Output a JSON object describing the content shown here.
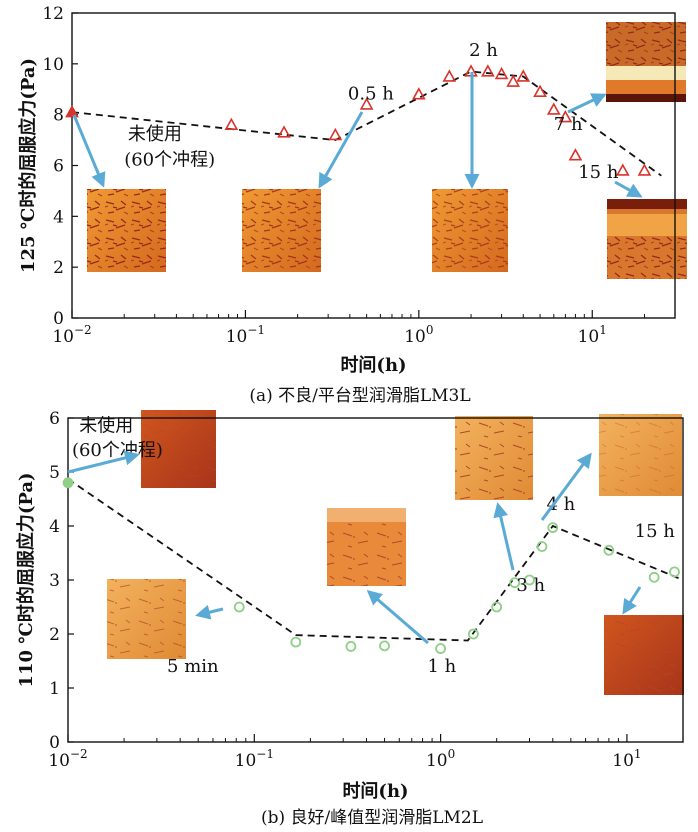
{
  "chart_data": [
    {
      "id": "a",
      "type": "scatter",
      "caption": "(a) 不良/平台型润滑脂LM3L",
      "xlabel": "时间(h)",
      "ylabel": "125 ℃时的屈服应力(Pa)",
      "xscale": "log",
      "xlim": [
        0.01,
        30
      ],
      "ylim": [
        0,
        12
      ],
      "xticks": [
        {
          "v": 0.01,
          "base": "10",
          "exp": "−2"
        },
        {
          "v": 0.1,
          "base": "10",
          "exp": "−1"
        },
        {
          "v": 1,
          "base": "10",
          "exp": "0"
        },
        {
          "v": 10,
          "base": "10",
          "exp": "1"
        }
      ],
      "yticks": [
        0,
        2,
        4,
        6,
        8,
        10,
        12
      ],
      "marker": {
        "shape": "triangle",
        "color": "#d9332b"
      },
      "points": [
        {
          "x": 0.01,
          "y": 8.1,
          "filled": true
        },
        {
          "x": 0.083,
          "y": 7.6
        },
        {
          "x": 0.167,
          "y": 7.3
        },
        {
          "x": 0.33,
          "y": 7.2
        },
        {
          "x": 0.5,
          "y": 8.4
        },
        {
          "x": 1.0,
          "y": 8.8
        },
        {
          "x": 1.5,
          "y": 9.5
        },
        {
          "x": 2.0,
          "y": 9.7
        },
        {
          "x": 2.5,
          "y": 9.7
        },
        {
          "x": 3.0,
          "y": 9.6
        },
        {
          "x": 3.5,
          "y": 9.3
        },
        {
          "x": 4.0,
          "y": 9.5
        },
        {
          "x": 5.0,
          "y": 8.9
        },
        {
          "x": 6.0,
          "y": 8.2
        },
        {
          "x": 7.0,
          "y": 7.9
        },
        {
          "x": 8.0,
          "y": 6.4
        },
        {
          "x": 15.0,
          "y": 5.8
        },
        {
          "x": 20.0,
          "y": 5.8
        }
      ],
      "trend": [
        {
          "x": 0.01,
          "y": 8.1
        },
        {
          "x": 0.33,
          "y": 7.0
        },
        {
          "x": 2.0,
          "y": 9.7
        },
        {
          "x": 4.0,
          "y": 9.5
        },
        {
          "x": 25.0,
          "y": 5.6
        }
      ],
      "annotations": [
        {
          "text": "未使用",
          "x": 0.021,
          "y": 7.0
        },
        {
          "text": "(60个冲程)",
          "x": 0.02,
          "y": 6.0
        },
        {
          "text": "0.5 h",
          "x": 0.39,
          "y": 8.6
        },
        {
          "text": "2 h",
          "x": 1.95,
          "y": 10.3
        },
        {
          "text": "7 h",
          "x": 6.0,
          "y": 7.4
        },
        {
          "text": "15 h",
          "x": 8.3,
          "y": 5.5
        }
      ]
    },
    {
      "id": "b",
      "type": "scatter",
      "caption": "(b) 良好/峰值型润滑脂LM2L",
      "xlabel": "时间(h)",
      "ylabel": "110 ℃时的屈服应力(Pa)",
      "xscale": "log",
      "xlim": [
        0.01,
        20
      ],
      "ylim": [
        0,
        6
      ],
      "xticks": [
        {
          "v": 0.01,
          "base": "10",
          "exp": "−2"
        },
        {
          "v": 0.1,
          "base": "10",
          "exp": "−1"
        },
        {
          "v": 1,
          "base": "10",
          "exp": "0"
        },
        {
          "v": 10,
          "base": "10",
          "exp": "1"
        }
      ],
      "yticks": [
        0,
        1,
        2,
        3,
        4,
        5,
        6
      ],
      "marker": {
        "shape": "circle",
        "color": "#8fcf88"
      },
      "points": [
        {
          "x": 0.01,
          "y": 4.8,
          "filled": true
        },
        {
          "x": 0.083,
          "y": 2.5
        },
        {
          "x": 0.167,
          "y": 1.85
        },
        {
          "x": 0.33,
          "y": 1.77
        },
        {
          "x": 0.5,
          "y": 1.78
        },
        {
          "x": 1.0,
          "y": 1.73
        },
        {
          "x": 1.5,
          "y": 2.0
        },
        {
          "x": 2.0,
          "y": 2.5
        },
        {
          "x": 2.5,
          "y": 2.95
        },
        {
          "x": 3.0,
          "y": 3.0
        },
        {
          "x": 3.5,
          "y": 3.62
        },
        {
          "x": 4.0,
          "y": 3.97
        },
        {
          "x": 8.0,
          "y": 3.55
        },
        {
          "x": 14.0,
          "y": 3.05
        },
        {
          "x": 18.0,
          "y": 3.15
        }
      ],
      "trend": [
        {
          "x": 0.01,
          "y": 4.87
        },
        {
          "x": 0.167,
          "y": 1.98
        },
        {
          "x": 1.4,
          "y": 1.88
        },
        {
          "x": 4.0,
          "y": 4.0
        },
        {
          "x": 20.0,
          "y": 3.0
        }
      ],
      "annotations": [
        {
          "text": "未使用",
          "x": 0.0115,
          "y": 5.75
        },
        {
          "text": "(60个冲程)",
          "x": 0.0105,
          "y": 5.3
        },
        {
          "text": "5 min",
          "x": 0.034,
          "y": 1.3
        },
        {
          "text": "1 h",
          "x": 0.85,
          "y": 1.3
        },
        {
          "text": "3 h",
          "x": 2.55,
          "y": 2.8
        },
        {
          "text": "4 h",
          "x": 3.7,
          "y": 4.3
        },
        {
          "text": "15 h",
          "x": 11.0,
          "y": 3.8
        }
      ]
    }
  ],
  "colors": {
    "arrow": "#5aaad6",
    "trend": "#111111",
    "micrograph_bright": "#e88f2c",
    "micrograph_dark": "#a8341a",
    "micrograph_pale": "#eeaa55"
  }
}
